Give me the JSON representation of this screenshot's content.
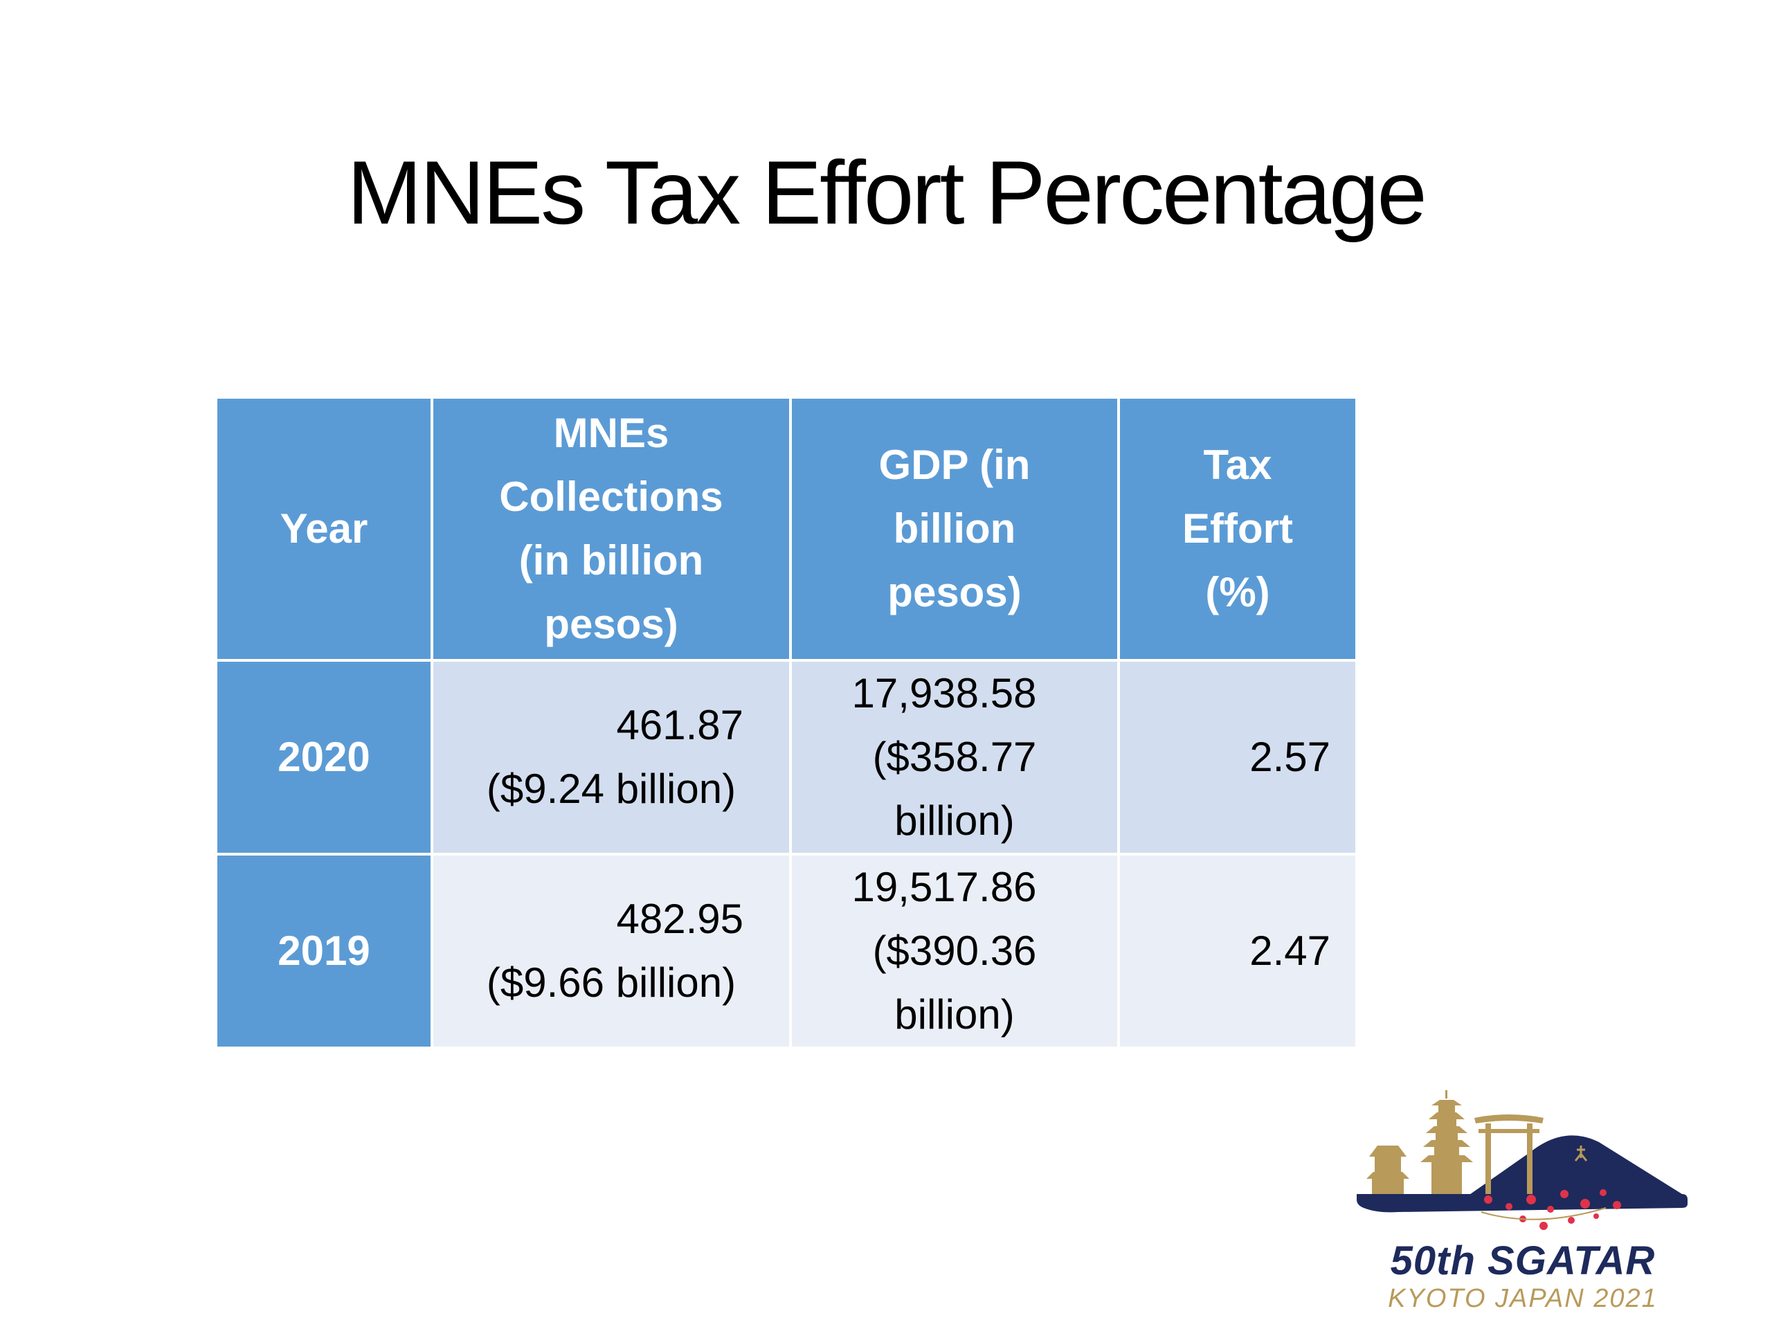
{
  "slide": {
    "title": "MNEs Tax Effort Percentage"
  },
  "table": {
    "headers": [
      {
        "line1": "Year",
        "line2": ""
      },
      {
        "line1": "MNEs Collections",
        "line2": "(in billion pesos)"
      },
      {
        "line1": "GDP (in billion",
        "line2": "pesos)"
      },
      {
        "line1": "Tax Effort",
        "line2": "(%)"
      }
    ],
    "rows": [
      {
        "year": "2020",
        "collections": "461.87",
        "collections_usd": "($9.24 billion)",
        "gdp": "17,938.58",
        "gdp_usd": "($358.77 billion)",
        "tax_effort": "2.57"
      },
      {
        "year": "2019",
        "collections": "482.95",
        "collections_usd": "($9.66 billion)",
        "gdp": "19,517.86",
        "gdp_usd": "($390.36 billion)",
        "tax_effort": "2.47"
      }
    ]
  },
  "logo": {
    "title": "50th SGATAR",
    "subtitle": "KYOTO JAPAN 2021"
  },
  "colors": {
    "header_bg": "#5b9bd5",
    "row_odd_bg": "#d2deef",
    "row_even_bg": "#eaeff7",
    "logo_navy": "#1e2a5c",
    "logo_gold": "#b89a5a"
  }
}
